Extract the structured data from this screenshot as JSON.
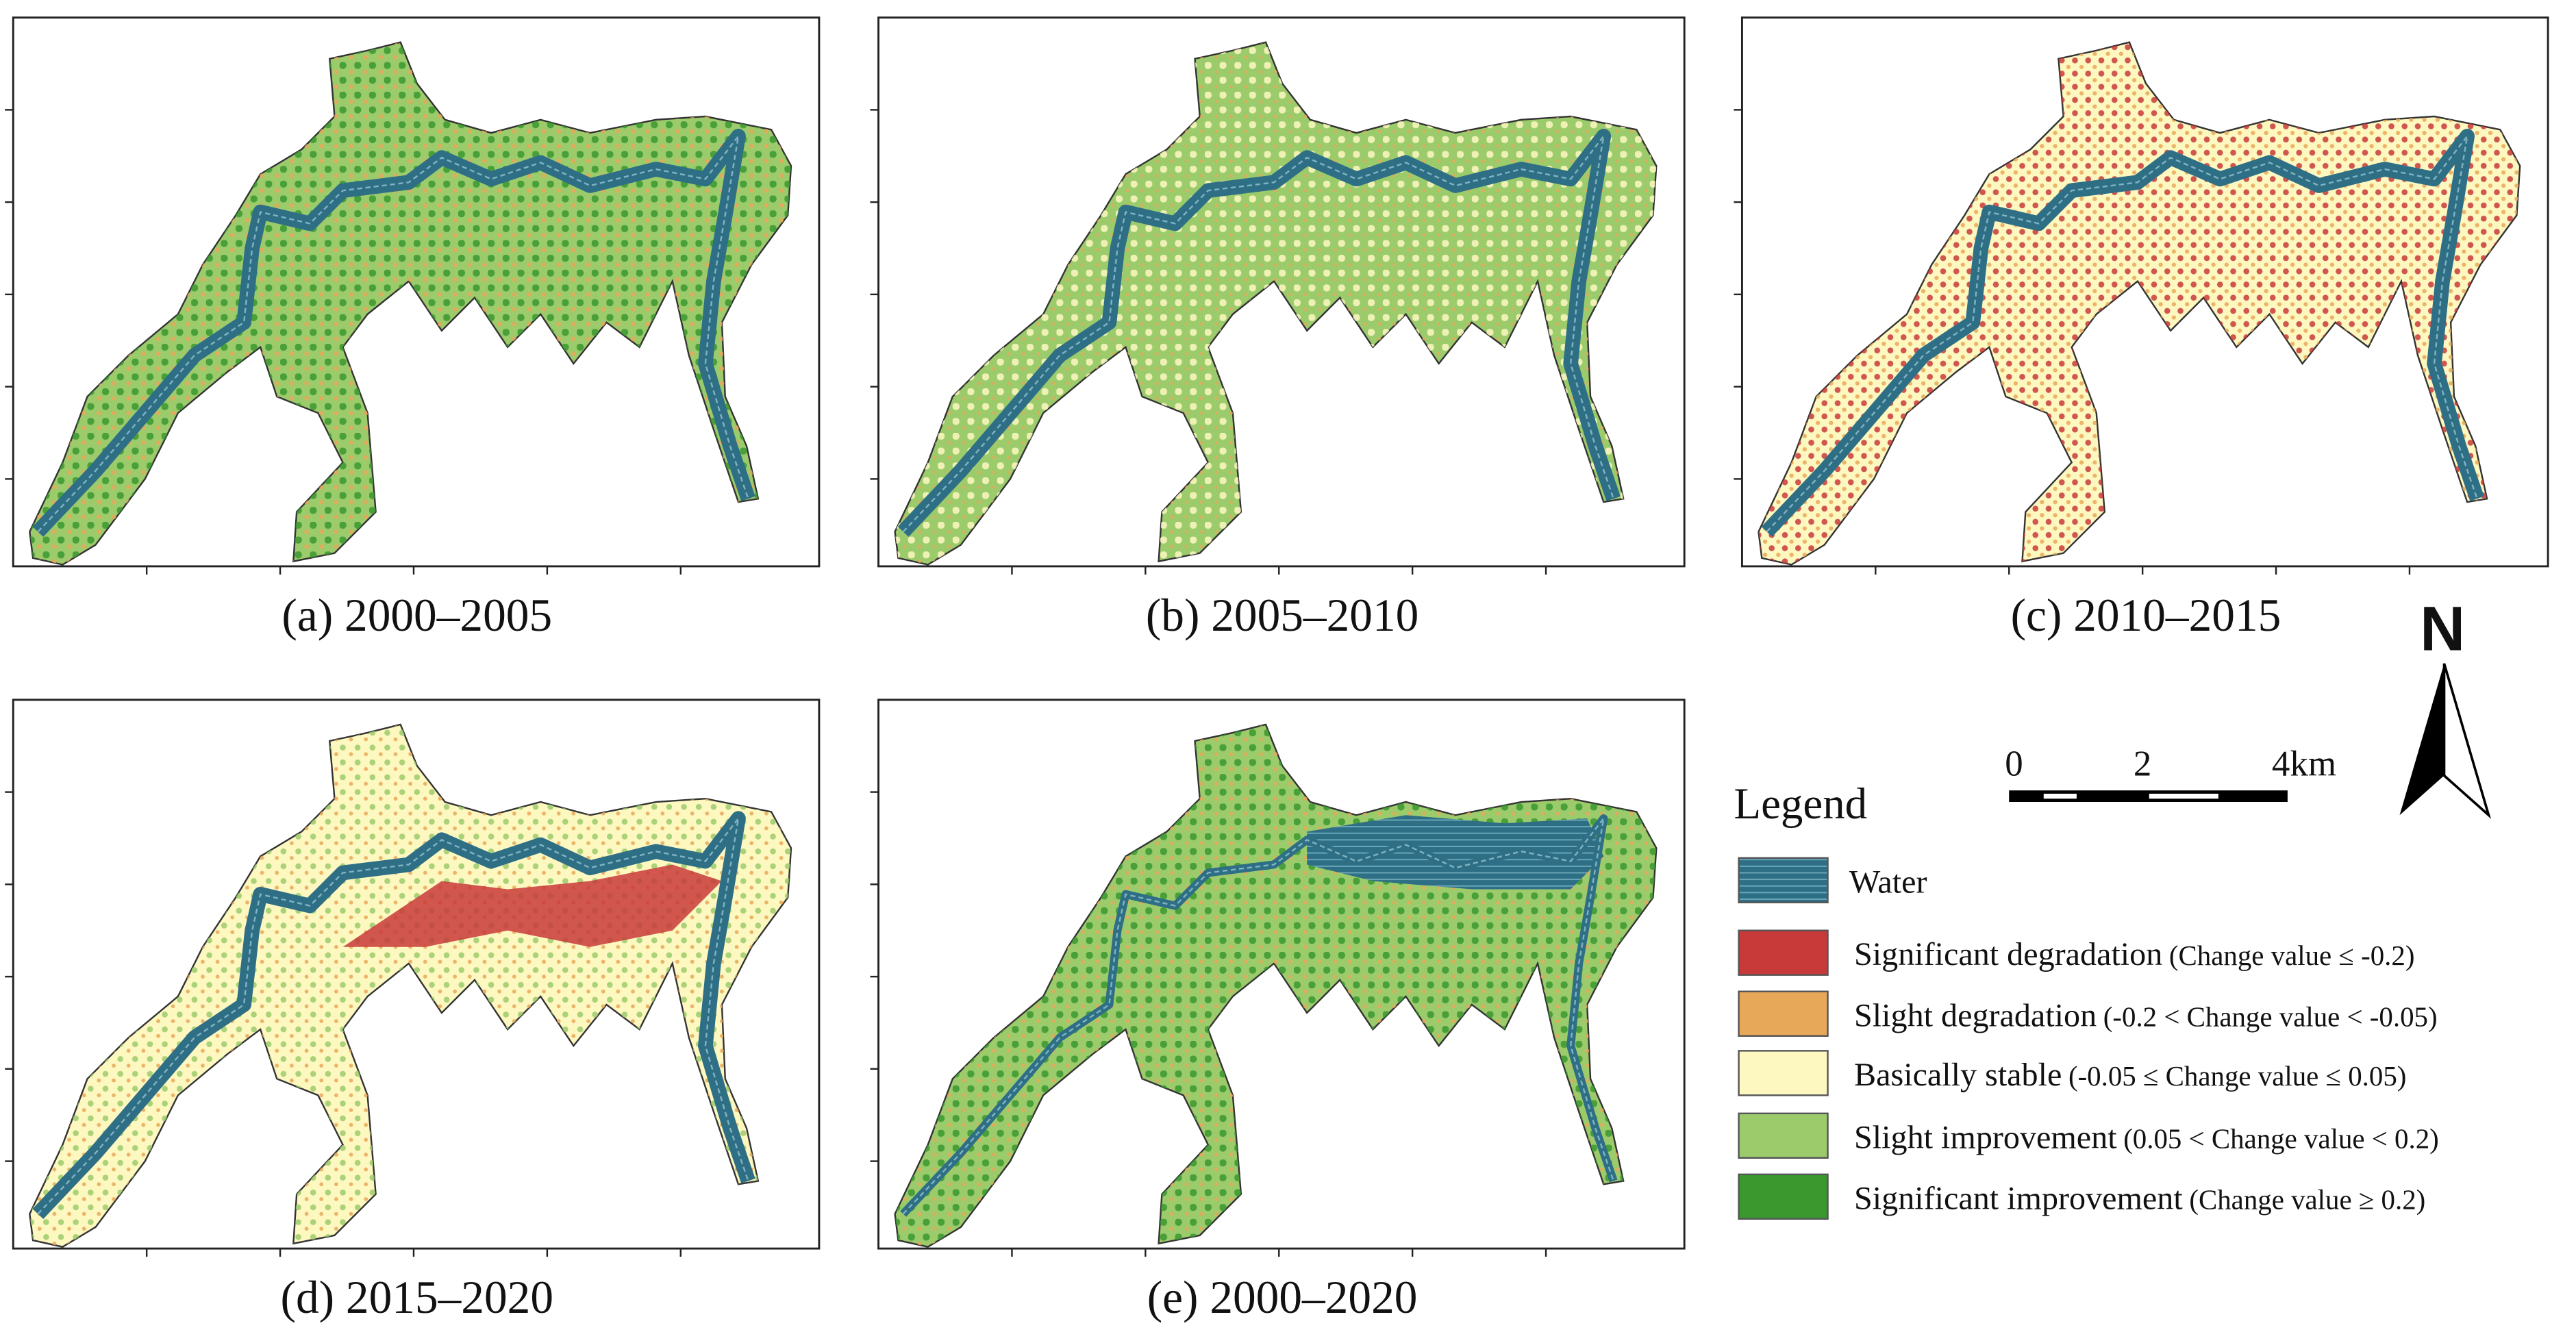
{
  "panels": [
    {
      "caption": "(a) 2000–2005"
    },
    {
      "caption": "(b) 2005–2010"
    },
    {
      "caption": "(c) 2010–2015"
    },
    {
      "caption": "(d) 2015–2020"
    },
    {
      "caption": "(e) 2000–2020"
    }
  ],
  "legend": {
    "title": "Legend",
    "items": [
      {
        "name": "Water",
        "color": "#2f6f86"
      },
      {
        "name": "Significant degradation",
        "range": "(Change value ≤ -0.2)",
        "color": "#c8393a"
      },
      {
        "name": "Slight degradation",
        "range": "(-0.2 < Change value < -0.05)",
        "color": "#e8a85a"
      },
      {
        "name": "Basically stable",
        "range": "(-0.05 ≤ Change value ≤ 0.05)",
        "color": "#fdf8c0"
      },
      {
        "name": "Slight improvement",
        "range": "(0.05 < Change value < 0.2)",
        "color": "#9ccb6c"
      },
      {
        "name": "Significant improvement",
        "range": "(Change value ≥ 0.2)",
        "color": "#3a982f"
      }
    ]
  },
  "scale_bar": {
    "labels": [
      "0",
      "2",
      "4km"
    ]
  },
  "north_arrow": {
    "label": "N"
  }
}
